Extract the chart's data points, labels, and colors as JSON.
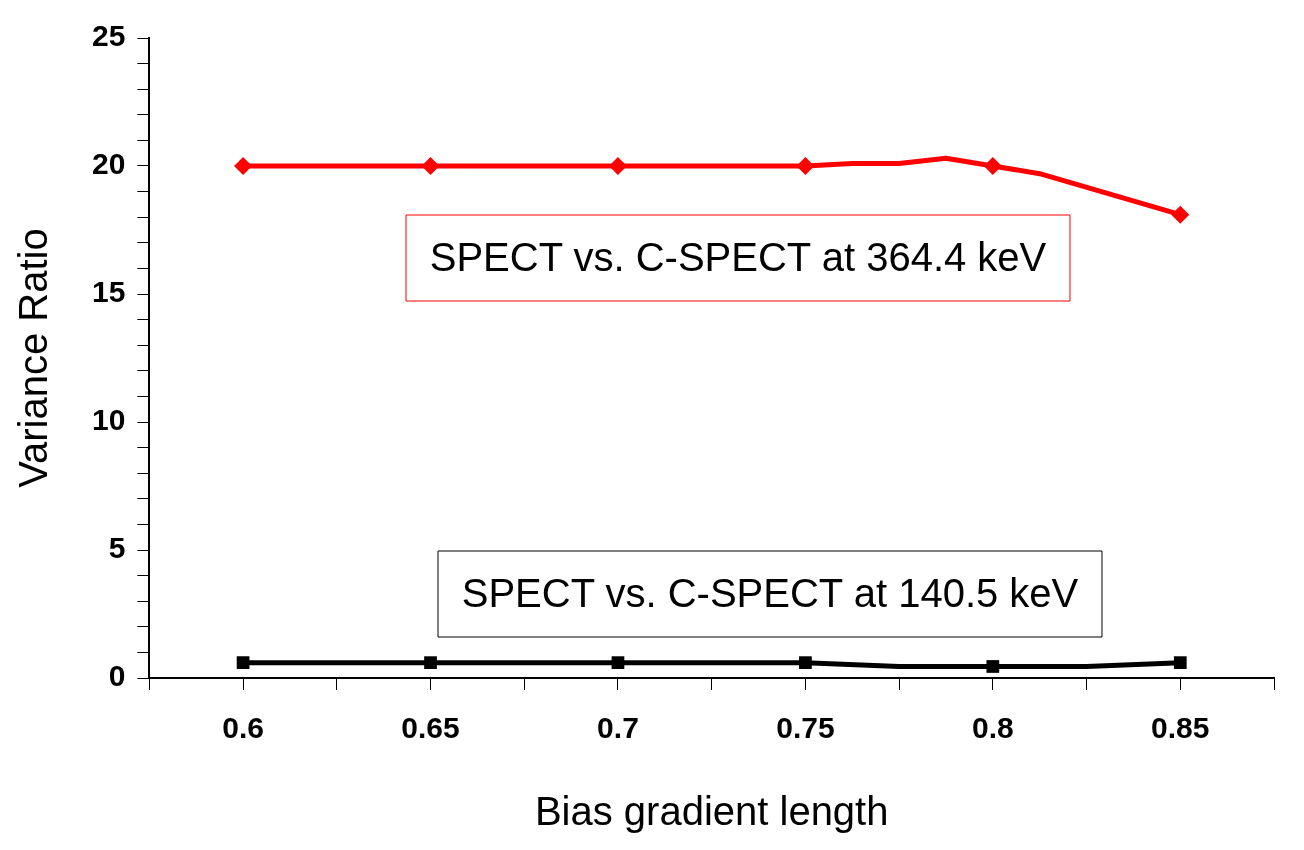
{
  "chart_data": {
    "type": "line",
    "xlabel": "Bias gradient length",
    "ylabel": "Variance Ratio",
    "xlim": [
      0.575,
      0.875
    ],
    "xticks": [
      {
        "value": 0.575,
        "label": null
      },
      0.6,
      {
        "value": 0.625,
        "label": null
      },
      0.65,
      {
        "value": 0.675,
        "label": null
      },
      0.7,
      {
        "value": 0.725,
        "label": null
      },
      0.75,
      {
        "value": 0.775,
        "label": null
      },
      0.8,
      {
        "value": 0.825,
        "label": null
      },
      0.85,
      {
        "value": 0.875,
        "label": null
      }
    ],
    "ylim": [
      0,
      25
    ],
    "yticks": [
      0,
      {
        "value": 1,
        "label": null
      },
      {
        "value": 2,
        "label": null
      },
      {
        "value": 3,
        "label": null
      },
      {
        "value": 4,
        "label": null
      },
      5,
      {
        "value": 6,
        "label": null
      },
      {
        "value": 7,
        "label": null
      },
      {
        "value": 8,
        "label": null
      },
      {
        "value": 9,
        "label": null
      },
      10,
      {
        "value": 11,
        "label": null
      },
      {
        "value": 12,
        "label": null
      },
      {
        "value": 13,
        "label": null
      },
      {
        "value": 14,
        "label": null
      },
      15,
      {
        "value": 16,
        "label": null
      },
      {
        "value": 17,
        "label": null
      },
      {
        "value": 18,
        "label": null
      },
      {
        "value": 19,
        "label": null
      },
      20,
      {
        "value": 21,
        "label": null
      },
      {
        "value": 22,
        "label": null
      },
      {
        "value": 23,
        "label": null
      },
      {
        "value": 24,
        "label": null
      },
      25
    ],
    "grid": false,
    "legend": false,
    "line_style": "solid",
    "series": [
      {
        "name": "SPECT vs. C-SPECT at 364.4 keV",
        "color": "#ff0000",
        "marker": "diamond",
        "x": [
          0.6,
          0.65,
          0.7,
          0.75,
          0.7625,
          0.775,
          0.7875,
          0.8,
          0.8125,
          0.85
        ],
        "values": [
          20,
          20,
          20,
          20,
          20.1,
          20.1,
          20.3,
          20,
          19.7,
          18.1
        ]
      },
      {
        "name": "SPECT vs. C-SPECT at 140.5 keV",
        "color": "#000000",
        "marker": "square",
        "x": [
          0.6,
          0.65,
          0.7,
          0.75,
          0.775,
          0.8,
          0.825,
          0.85
        ],
        "values": [
          0.6,
          0.6,
          0.6,
          0.6,
          0.45,
          0.45,
          0.45,
          0.6
        ]
      }
    ]
  }
}
